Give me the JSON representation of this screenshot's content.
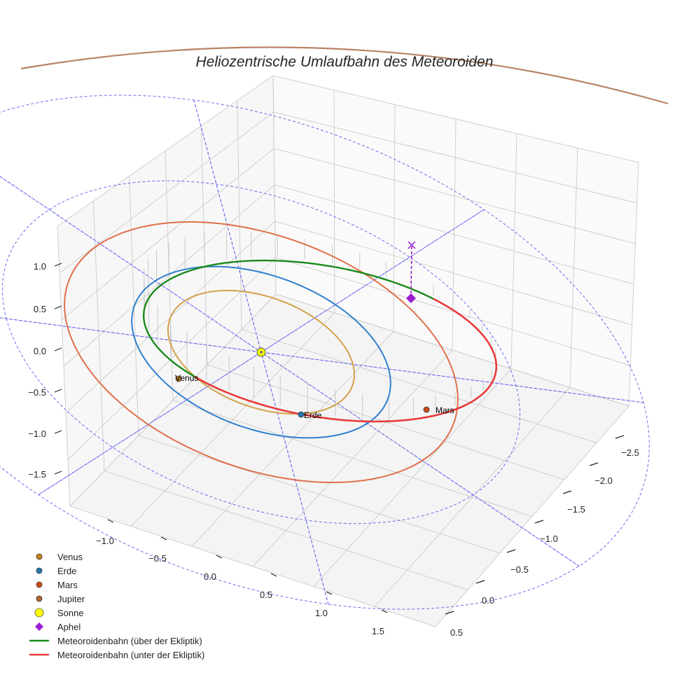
{
  "chart_data": {
    "type": "scatter",
    "projection": "3d",
    "title": "Heliozentrische Umlaufbahn des Meteoroiden",
    "grid": true,
    "legend_position": "bottom-left",
    "axes": {
      "x": {
        "ticks": [
          "−1.0",
          "−0.5",
          "0.0",
          "0.5",
          "1.0",
          "1.5"
        ],
        "range": [
          -1.3,
          1.8
        ]
      },
      "y": {
        "ticks": [
          "−2.5",
          "−2.0",
          "−1.5",
          "−1.0",
          "−0.5",
          "0.0",
          "0.5"
        ],
        "range": [
          -2.8,
          0.7
        ]
      },
      "z": {
        "ticks": [
          "1.0",
          "0.5",
          "0.0",
          "−0.5",
          "−1.0",
          "−1.5"
        ],
        "range": [
          -1.9,
          1.3
        ]
      }
    },
    "point_labels": [
      "Venus",
      "Erde",
      "Mars"
    ],
    "series": [
      {
        "name": "Venus",
        "kind": "marker",
        "color": "#c8811e",
        "orbit_color": "#d4a04a",
        "orbit_radius_au": 0.72
      },
      {
        "name": "Erde",
        "kind": "marker",
        "color": "#1f77b4",
        "orbit_color": "#2f7fd0",
        "orbit_radius_au": 1.0
      },
      {
        "name": "Mars",
        "kind": "marker",
        "color": "#d2491a",
        "orbit_color": "#e0704a",
        "orbit_radius_au": 1.52
      },
      {
        "name": "Jupiter",
        "kind": "marker",
        "color": "#b5642e",
        "orbit_color": "#b88464",
        "orbit_radius_au": 5.2
      },
      {
        "name": "Sonne",
        "kind": "marker",
        "color": "#ffff00",
        "edge": "#555555"
      },
      {
        "name": "Aphel",
        "kind": "diamond",
        "color": "#9a1ed3"
      },
      {
        "name": "Meteoroidenbahn (über der Ekliptik)",
        "kind": "line",
        "color": "#1a8a1a"
      },
      {
        "name": "Meteoroidenbahn (unter der Ekliptik)",
        "kind": "line",
        "color": "#e83a3a"
      }
    ]
  }
}
